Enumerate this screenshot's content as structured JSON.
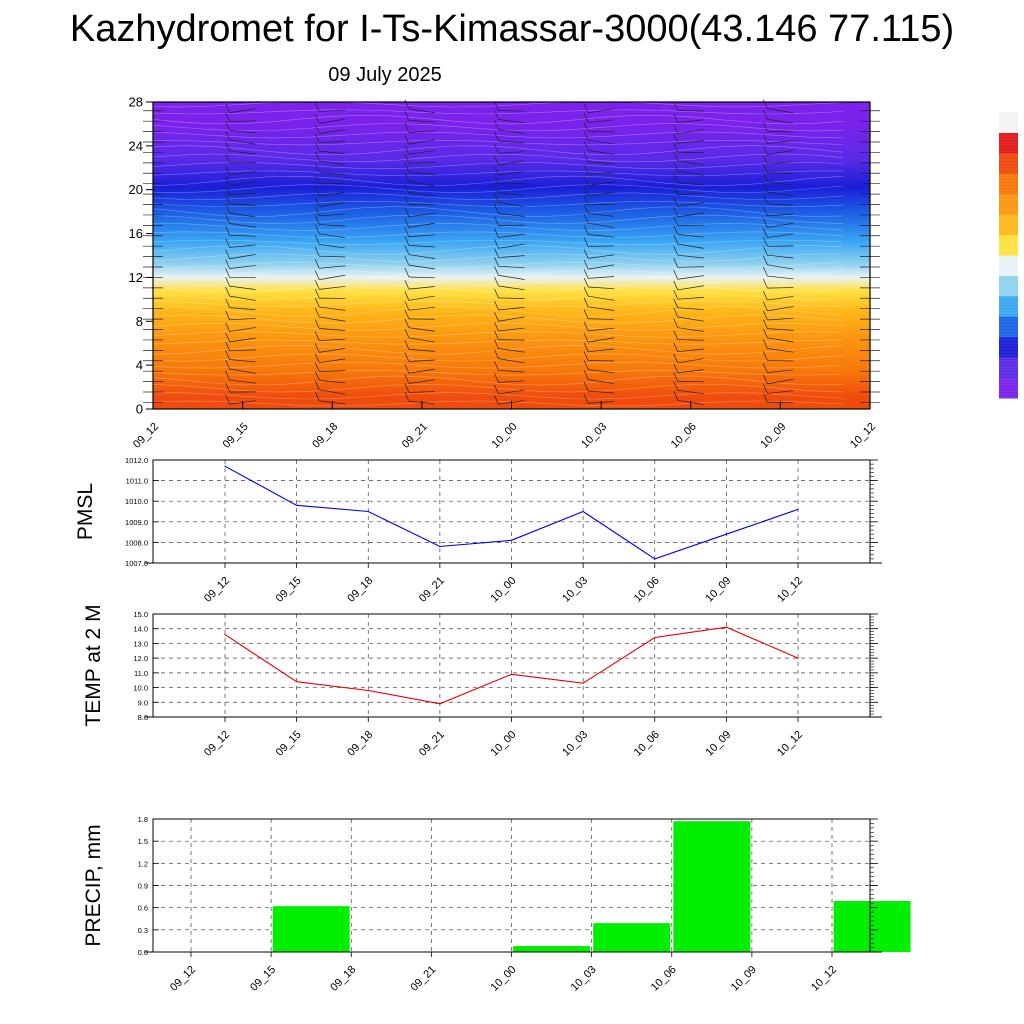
{
  "header": {
    "title": "Kazhydromet for I-Ts-Kimassar-3000(43.146 77.115)",
    "date": "09 July 2025"
  },
  "chart_data": [
    {
      "type": "heatmap",
      "title": "",
      "xlabel": "",
      "ylabel": "",
      "x_labels": [
        "09_12",
        "09_15",
        "09_18",
        "09_21",
        "10_00",
        "10_03",
        "10_06",
        "10_09",
        "10_12"
      ],
      "y_ticks": [
        "0",
        "4",
        "8",
        "12",
        "16",
        "20",
        "24",
        "28"
      ],
      "ylim": [
        0,
        28
      ],
      "color_bands": [
        {
          "from": 0,
          "to": 2,
          "color": "#ef4b0c"
        },
        {
          "from": 2,
          "to": 5,
          "color": "#f7780a"
        },
        {
          "from": 5,
          "to": 8,
          "color": "#fb9610"
        },
        {
          "from": 8,
          "to": 10,
          "color": "#fdb81a"
        },
        {
          "from": 10,
          "to": 11.5,
          "color": "#ffe040"
        },
        {
          "from": 11.5,
          "to": 12.5,
          "color": "#e9f2f6"
        },
        {
          "from": 12.5,
          "to": 14,
          "color": "#8fd1ef"
        },
        {
          "from": 14,
          "to": 16.5,
          "color": "#3aa6f4"
        },
        {
          "from": 16.5,
          "to": 19,
          "color": "#1d63e6"
        },
        {
          "from": 19,
          "to": 21.5,
          "color": "#1a1fd8"
        },
        {
          "from": 21.5,
          "to": 24,
          "color": "#5a2ae8"
        },
        {
          "from": 24,
          "to": 28,
          "color": "#7b22ec"
        }
      ],
      "colorbar": [
        "#7b22ec",
        "#5a2ae8",
        "#1a1fd8",
        "#1d63e6",
        "#3aa6f4",
        "#8fd1ef",
        "#e9f2f6",
        "#ffe040",
        "#fdb81a",
        "#fb9610",
        "#f7780a",
        "#ef4b0c",
        "#e01a1a",
        "#f4f4f4"
      ],
      "overlay": "wind barbs"
    },
    {
      "type": "line",
      "ylabel": "PMSL",
      "x": [
        "09_12",
        "09_15",
        "09_18",
        "09_21",
        "10_00",
        "10_03",
        "10_06",
        "10_09",
        "10_12"
      ],
      "series": [
        {
          "values": [
            1011.7,
            1009.8,
            1009.5,
            1007.8,
            1008.1,
            1009.5,
            1007.2,
            1008.4,
            1009.6
          ],
          "color": "#0000e6"
        }
      ],
      "ylim": [
        1007.0,
        1012.0
      ],
      "y_ticks": [
        "1007.0",
        "1008.0",
        "1009.0",
        "1010.0",
        "1011.0",
        "1012.0"
      ],
      "grid": true
    },
    {
      "type": "line",
      "ylabel": "TEMP at 2 M",
      "x": [
        "09_12",
        "09_15",
        "09_18",
        "09_21",
        "10_00",
        "10_03",
        "10_06",
        "10_09",
        "10_12"
      ],
      "series": [
        {
          "values": [
            13.6,
            10.4,
            9.8,
            8.9,
            10.9,
            10.3,
            13.4,
            14.1,
            12.0
          ],
          "color": "#e60000"
        }
      ],
      "ylim": [
        8.0,
        15.0
      ],
      "y_ticks": [
        "8.0",
        "9.0",
        "10.0",
        "11.0",
        "12.0",
        "13.0",
        "14.0",
        "15.0"
      ],
      "grid": true
    },
    {
      "type": "bar",
      "ylabel": "PRECIP, mm",
      "categories": [
        "09_12",
        "09_15",
        "09_18",
        "09_21",
        "10_00",
        "10_03",
        "10_06",
        "10_09",
        "10_12"
      ],
      "values": [
        0.0,
        0.62,
        0.0,
        0.0,
        0.08,
        0.39,
        1.77,
        0.0,
        0.69
      ],
      "color": "#00ee00",
      "ylim": [
        0.0,
        1.8
      ],
      "y_ticks": [
        "0.0",
        "0.3",
        "0.6",
        "0.9",
        "1.2",
        "1.5",
        "1.8"
      ],
      "grid": true
    }
  ]
}
